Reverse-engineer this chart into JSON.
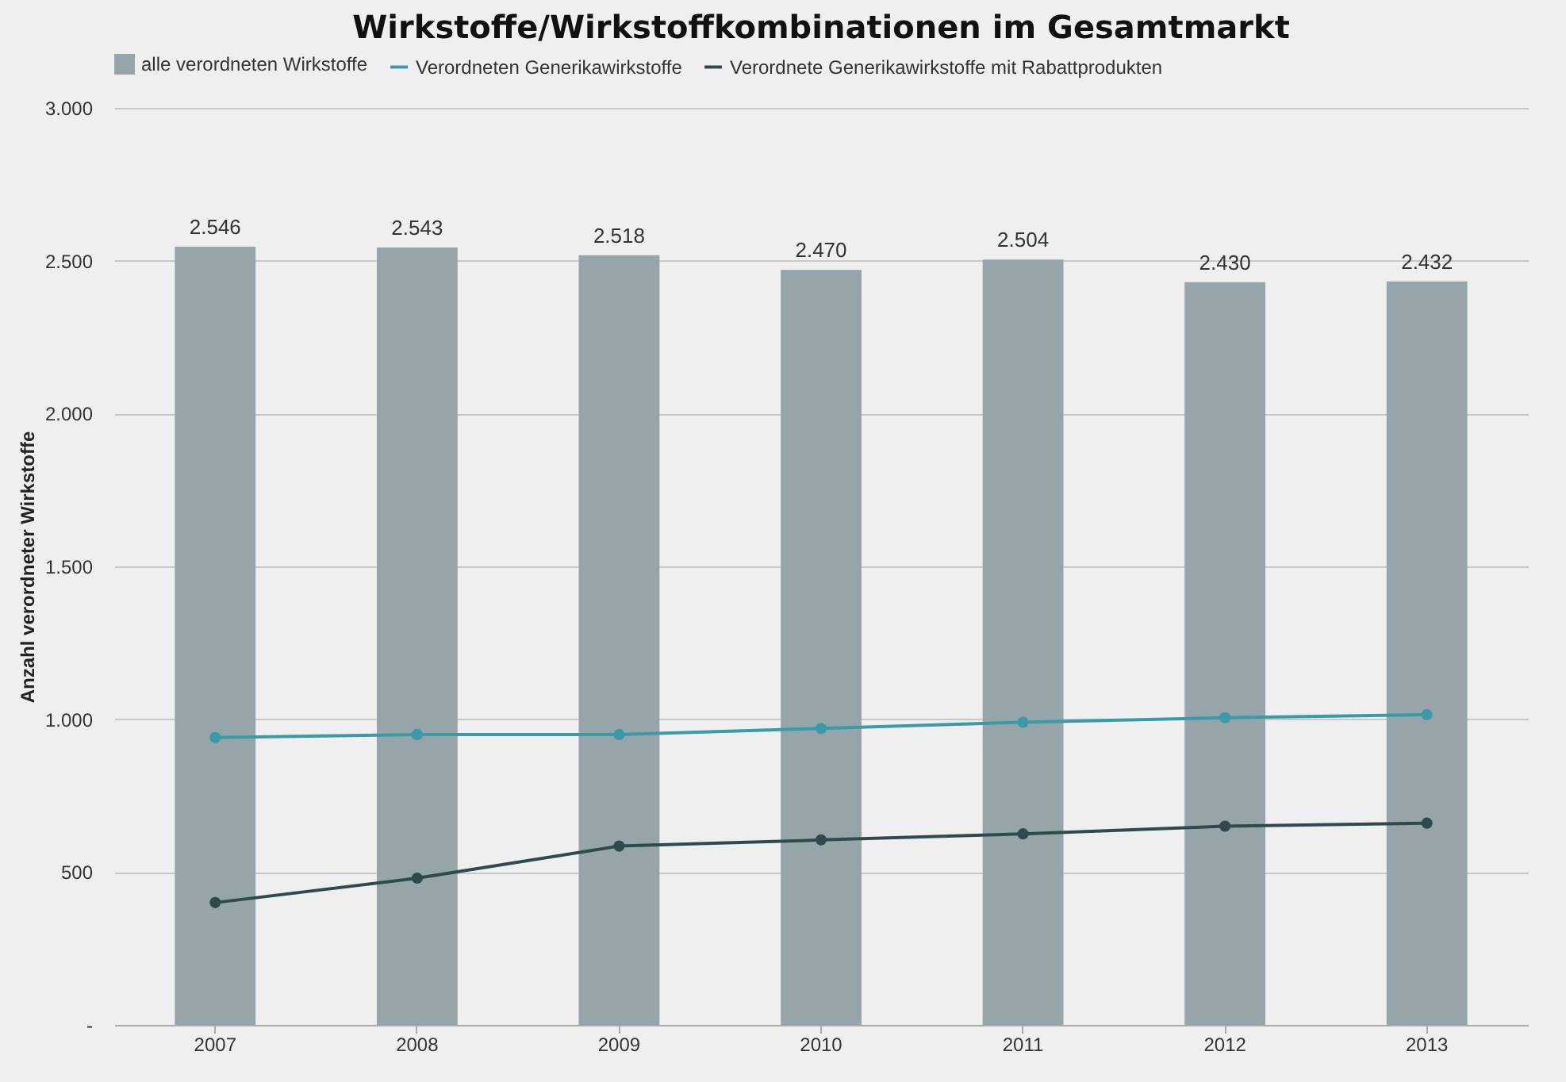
{
  "chart_data": {
    "type": "bar",
    "title": "Wirkstoffe/Wirkstoffkombinationen im Gesamtmarkt",
    "ylabel": "Anzahl verordneter Wirkstoffe",
    "categories": [
      "2007",
      "2008",
      "2009",
      "2010",
      "2011",
      "2012",
      "2013"
    ],
    "series": [
      {
        "name": "alle verordneten Wirkstoffe",
        "color": "#95a5a9",
        "values": [
          2546,
          2543,
          2518,
          2470,
          2504,
          2430,
          2432
        ],
        "value_labels": [
          "2.546",
          "2.543",
          "2.518",
          "2.470",
          "2.504",
          "2.430",
          "2.432"
        ]
      },
      {
        "name": "Verordneten Generikawirkstoffe",
        "type": "line",
        "color": "#3a9aa8",
        "values": [
          940,
          950,
          950,
          970,
          990,
          1005,
          1015
        ]
      },
      {
        "name": "Verordnete Generikawirkstoffe mit Rabattprodukten",
        "type": "line",
        "color": "#2f4a4f",
        "values": [
          400,
          480,
          585,
          605,
          625,
          650,
          660
        ]
      }
    ],
    "ylim": [
      0,
      3000
    ],
    "yticks": [
      {
        "value": 0,
        "label": "-"
      },
      {
        "value": 500,
        "label": "500"
      },
      {
        "value": 1000,
        "label": "1.000"
      },
      {
        "value": 1500,
        "label": "1.500"
      },
      {
        "value": 2000,
        "label": "2.000"
      },
      {
        "value": 2500,
        "label": "2.500"
      },
      {
        "value": 3000,
        "label": "3.000"
      }
    ],
    "grid": "y",
    "legend": "top",
    "marker": "circle",
    "line_style": "solid"
  }
}
